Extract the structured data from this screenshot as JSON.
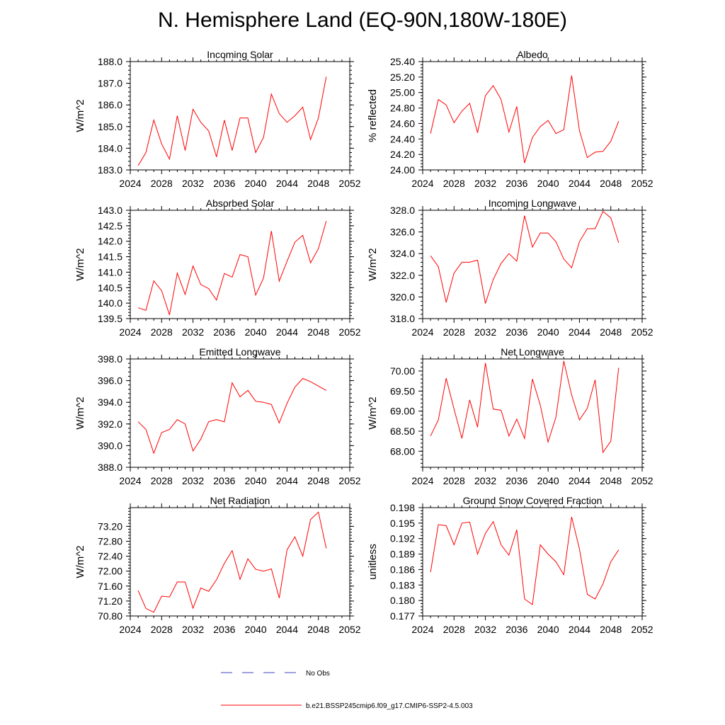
{
  "title": "N. Hemisphere Land (EQ-90N,180W-180E)",
  "chart_data": [
    {
      "type": "line",
      "title": "Incoming Solar",
      "ylabel": "W/m^2",
      "xlim": [
        2024,
        2052
      ],
      "ylim": [
        183.0,
        188.0
      ],
      "yticks": [
        "183.0",
        "184.0",
        "185.0",
        "186.0",
        "187.0",
        "188.0"
      ],
      "ytick_values": [
        183,
        184,
        185,
        186,
        187,
        188
      ],
      "x": [
        2025,
        2026,
        2027,
        2028,
        2029,
        2030,
        2031,
        2032,
        2033,
        2034,
        2035,
        2036,
        2037,
        2038,
        2039,
        2040,
        2041,
        2042,
        2043,
        2044,
        2045,
        2046,
        2047,
        2048,
        2049
      ],
      "values": [
        183.2,
        183.8,
        185.3,
        184.2,
        183.5,
        185.5,
        183.9,
        185.8,
        185.2,
        184.8,
        183.6,
        185.3,
        183.9,
        185.4,
        185.4,
        183.8,
        184.5,
        186.5,
        185.6,
        185.2,
        185.5,
        185.9,
        184.4,
        185.4,
        187.3
      ]
    },
    {
      "type": "line",
      "title": "Albedo",
      "ylabel": "% reflected",
      "xlim": [
        2024,
        2052
      ],
      "ylim": [
        24.0,
        25.4
      ],
      "yticks": [
        "24.00",
        "24.20",
        "24.40",
        "24.60",
        "24.80",
        "25.00",
        "25.20",
        "25.40"
      ],
      "ytick_values": [
        24.0,
        24.2,
        24.4,
        24.6,
        24.8,
        25.0,
        25.2,
        25.4
      ],
      "x": [
        2025,
        2026,
        2027,
        2028,
        2029,
        2030,
        2031,
        2032,
        2033,
        2034,
        2035,
        2036,
        2037,
        2038,
        2039,
        2040,
        2041,
        2042,
        2043,
        2044,
        2045,
        2046,
        2047,
        2048,
        2049
      ],
      "values": [
        24.47,
        24.91,
        24.84,
        24.61,
        24.76,
        24.86,
        24.48,
        24.96,
        25.09,
        24.91,
        24.49,
        24.82,
        24.09,
        24.42,
        24.56,
        24.64,
        24.47,
        24.52,
        25.22,
        24.51,
        24.16,
        24.23,
        24.24,
        24.37,
        24.63
      ]
    },
    {
      "type": "line",
      "title": "Absorbed Solar",
      "ylabel": "W/m^2",
      "xlim": [
        2024,
        2052
      ],
      "ylim": [
        139.5,
        143.0
      ],
      "yticks": [
        "139.5",
        "140.0",
        "140.5",
        "141.0",
        "141.5",
        "142.0",
        "142.5",
        "143.0"
      ],
      "ytick_values": [
        139.5,
        140.0,
        140.5,
        141.0,
        141.5,
        142.0,
        142.5,
        143.0
      ],
      "x": [
        2025,
        2026,
        2027,
        2028,
        2029,
        2030,
        2031,
        2032,
        2033,
        2034,
        2035,
        2036,
        2037,
        2038,
        2039,
        2040,
        2041,
        2042,
        2043,
        2044,
        2045,
        2046,
        2047,
        2048,
        2049
      ],
      "values": [
        139.85,
        139.77,
        140.72,
        140.4,
        139.62,
        140.97,
        140.28,
        141.2,
        140.6,
        140.47,
        140.1,
        140.96,
        140.84,
        141.57,
        141.5,
        140.26,
        140.81,
        142.33,
        140.71,
        141.35,
        141.97,
        142.19,
        141.3,
        141.76,
        142.65
      ]
    },
    {
      "type": "line",
      "title": "Incoming Longwave",
      "ylabel": "W/m^2",
      "xlim": [
        2024,
        2052
      ],
      "ylim": [
        318.0,
        328.0
      ],
      "yticks": [
        "318.0",
        "320.0",
        "322.0",
        "324.0",
        "326.0",
        "328.0"
      ],
      "ytick_values": [
        318,
        320,
        322,
        324,
        326,
        328
      ],
      "x": [
        2025,
        2026,
        2027,
        2028,
        2029,
        2030,
        2031,
        2032,
        2033,
        2034,
        2035,
        2036,
        2037,
        2038,
        2039,
        2040,
        2041,
        2042,
        2043,
        2044,
        2045,
        2046,
        2047,
        2048,
        2049
      ],
      "values": [
        323.8,
        322.8,
        319.5,
        322.2,
        323.2,
        323.2,
        323.4,
        319.4,
        321.6,
        323.1,
        324.0,
        323.3,
        327.5,
        324.6,
        325.9,
        325.9,
        325.1,
        323.5,
        322.7,
        325.1,
        326.3,
        326.3,
        327.9,
        327.3,
        325.0
      ]
    },
    {
      "type": "line",
      "title": "Emitted Longwave",
      "ylabel": "W/m^2",
      "xlim": [
        2024,
        2052
      ],
      "ylim": [
        388.0,
        398.0
      ],
      "yticks": [
        "388.0",
        "390.0",
        "392.0",
        "394.0",
        "396.0",
        "398.0"
      ],
      "ytick_values": [
        388,
        390,
        392,
        394,
        396,
        398
      ],
      "x": [
        2025,
        2026,
        2027,
        2028,
        2029,
        2030,
        2031,
        2032,
        2033,
        2034,
        2035,
        2036,
        2037,
        2038,
        2039,
        2040,
        2041,
        2042,
        2043,
        2044,
        2045,
        2046,
        2047,
        2048,
        2049
      ],
      "values": [
        392.2,
        391.5,
        389.3,
        391.2,
        391.5,
        392.4,
        392.0,
        389.5,
        390.6,
        392.2,
        392.4,
        392.2,
        395.8,
        394.5,
        395.1,
        394.1,
        394.0,
        393.8,
        392.1,
        393.9,
        395.4,
        396.2,
        395.9,
        395.5,
        395.1
      ]
    },
    {
      "type": "line",
      "title": "Net Longwave",
      "ylabel": "W/m^2",
      "xlim": [
        2024,
        2052
      ],
      "ylim": [
        67.6,
        70.3
      ],
      "yticks": [
        "68.00",
        "68.50",
        "69.00",
        "69.50",
        "70.00"
      ],
      "ytick_values": [
        68.0,
        68.5,
        69.0,
        69.5,
        70.0
      ],
      "x": [
        2025,
        2026,
        2027,
        2028,
        2029,
        2030,
        2031,
        2032,
        2033,
        2034,
        2035,
        2036,
        2037,
        2038,
        2039,
        2040,
        2041,
        2042,
        2043,
        2044,
        2045,
        2046,
        2047,
        2048,
        2049
      ],
      "values": [
        68.38,
        68.78,
        69.82,
        69.05,
        68.32,
        69.28,
        68.6,
        70.2,
        69.05,
        69.02,
        68.38,
        68.8,
        68.32,
        69.8,
        69.15,
        68.23,
        68.85,
        70.25,
        69.4,
        68.78,
        69.07,
        69.78,
        67.97,
        68.25,
        70.08
      ]
    },
    {
      "type": "line",
      "title": "Net Radiation",
      "ylabel": "W/m^2",
      "xlim": [
        2024,
        2052
      ],
      "ylim": [
        70.8,
        73.7
      ],
      "yticks": [
        "70.80",
        "71.20",
        "71.60",
        "72.00",
        "72.40",
        "72.80",
        "73.20"
      ],
      "ytick_values": [
        70.8,
        71.2,
        71.6,
        72.0,
        72.4,
        72.8,
        73.2
      ],
      "x": [
        2025,
        2026,
        2027,
        2028,
        2029,
        2030,
        2031,
        2032,
        2033,
        2034,
        2035,
        2036,
        2037,
        2038,
        2039,
        2040,
        2041,
        2042,
        2043,
        2044,
        2045,
        2046,
        2047,
        2048,
        2049
      ],
      "values": [
        71.48,
        71.0,
        70.9,
        71.33,
        71.31,
        71.71,
        71.71,
        71.01,
        71.55,
        71.46,
        71.77,
        72.21,
        72.55,
        71.78,
        72.33,
        72.05,
        72.0,
        72.06,
        71.28,
        72.57,
        72.92,
        72.4,
        73.38,
        73.58,
        72.61
      ]
    },
    {
      "type": "line",
      "title": "Ground Snow Covered Fraction",
      "ylabel": "unitless",
      "xlim": [
        2024,
        2052
      ],
      "ylim": [
        0.177,
        0.198
      ],
      "yticks": [
        "0.177",
        "0.180",
        "0.183",
        "0.186",
        "0.189",
        "0.192",
        "0.195",
        "0.198"
      ],
      "ytick_values": [
        0.177,
        0.18,
        0.183,
        0.186,
        0.189,
        0.192,
        0.195,
        0.198
      ],
      "x": [
        2025,
        2026,
        2027,
        2028,
        2029,
        2030,
        2031,
        2032,
        2033,
        2034,
        2035,
        2036,
        2037,
        2038,
        2039,
        2040,
        2041,
        2042,
        2043,
        2044,
        2045,
        2046,
        2047,
        2048,
        2049
      ],
      "values": [
        0.1855,
        0.1947,
        0.1945,
        0.1908,
        0.195,
        0.1952,
        0.189,
        0.193,
        0.1953,
        0.1908,
        0.1888,
        0.1937,
        0.1803,
        0.1792,
        0.1908,
        0.189,
        0.1875,
        0.185,
        0.1962,
        0.19,
        0.1812,
        0.1803,
        0.1832,
        0.1875,
        0.1898
      ]
    }
  ],
  "xticks": [
    "2024",
    "2028",
    "2032",
    "2036",
    "2040",
    "2044",
    "2048",
    "2052"
  ],
  "xtick_values": [
    2024,
    2028,
    2032,
    2036,
    2040,
    2044,
    2048,
    2052
  ],
  "legend": {
    "obs_label": "No Obs",
    "model_label": "b.e21.BSSP245cmip6.f09_g17.CMIP6-SSP2-4.5.003",
    "obs_color": "#4040c0",
    "model_color": "#ff0000"
  }
}
